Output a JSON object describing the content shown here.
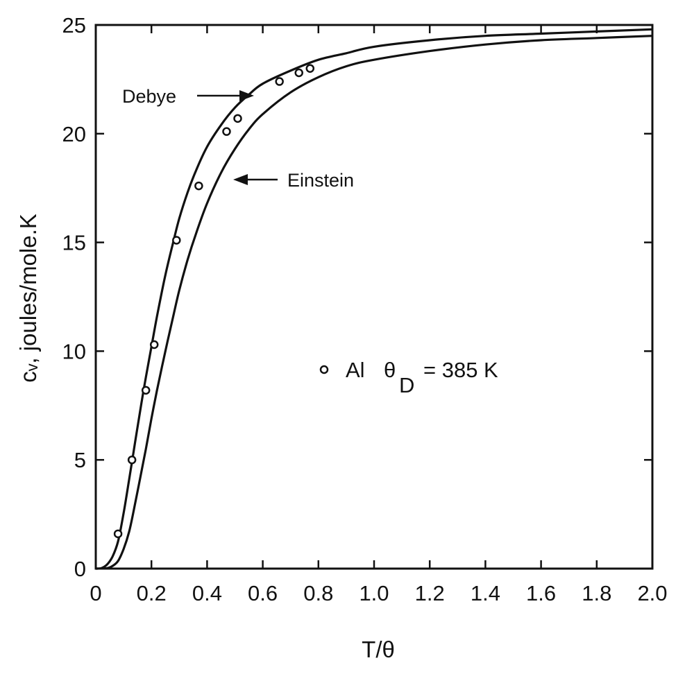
{
  "chart_data": {
    "type": "line",
    "xlabel": "T/θ",
    "ylabel": "cᵥ, joules/mole.K",
    "xlim": [
      0,
      2.0
    ],
    "ylim": [
      0,
      25
    ],
    "grid": false,
    "x_ticks": [
      "0",
      "0.2",
      "0.4",
      "0.6",
      "0.8",
      "1.0",
      "1.2",
      "1.4",
      "1.6",
      "1.8",
      "2.0"
    ],
    "y_ticks": [
      "0",
      "5",
      "10",
      "15",
      "20",
      "25"
    ],
    "series": [
      {
        "name": "Debye",
        "style": "line",
        "x": [
          0,
          0.02,
          0.04,
          0.06,
          0.08,
          0.1,
          0.12,
          0.14,
          0.16,
          0.18,
          0.2,
          0.22,
          0.25,
          0.28,
          0.3,
          0.33,
          0.36,
          0.4,
          0.45,
          0.5,
          0.55,
          0.6,
          0.7,
          0.8,
          0.9,
          1.0,
          1.2,
          1.4,
          1.6,
          1.8,
          2.0
        ],
        "y": [
          0,
          0.02,
          0.18,
          0.55,
          1.25,
          2.55,
          4.1,
          5.7,
          7.3,
          8.8,
          10.2,
          11.6,
          13.5,
          15.1,
          16.1,
          17.3,
          18.3,
          19.4,
          20.4,
          21.2,
          21.8,
          22.3,
          22.9,
          23.4,
          23.7,
          24.0,
          24.3,
          24.5,
          24.6,
          24.7,
          24.8
        ]
      },
      {
        "name": "Einstein",
        "style": "line",
        "x": [
          0,
          0.04,
          0.06,
          0.08,
          0.1,
          0.12,
          0.14,
          0.16,
          0.18,
          0.2,
          0.22,
          0.25,
          0.28,
          0.3,
          0.33,
          0.36,
          0.4,
          0.45,
          0.5,
          0.55,
          0.6,
          0.7,
          0.8,
          0.9,
          1.0,
          1.2,
          1.4,
          1.6,
          1.8,
          2.0
        ],
        "y": [
          0,
          0.02,
          0.12,
          0.35,
          0.9,
          1.7,
          2.9,
          4.2,
          5.5,
          6.9,
          8.2,
          10.0,
          11.7,
          12.8,
          14.2,
          15.4,
          16.8,
          18.2,
          19.3,
          20.2,
          20.9,
          21.9,
          22.6,
          23.1,
          23.4,
          23.8,
          24.1,
          24.3,
          24.4,
          24.5
        ]
      },
      {
        "name": "Al",
        "style": "points",
        "x": [
          0.08,
          0.13,
          0.18,
          0.21,
          0.29,
          0.37,
          0.47,
          0.51,
          0.66,
          0.73,
          0.77
        ],
        "y": [
          1.6,
          5.0,
          8.2,
          10.3,
          15.1,
          17.6,
          20.1,
          20.7,
          22.4,
          22.8,
          23.0
        ]
      }
    ],
    "annotations": {
      "debye": "Debye",
      "einstein": "Einstein"
    },
    "legend": {
      "text": "Al",
      "theta": "θ",
      "sub": "D",
      "rest": "= 385 K"
    }
  }
}
